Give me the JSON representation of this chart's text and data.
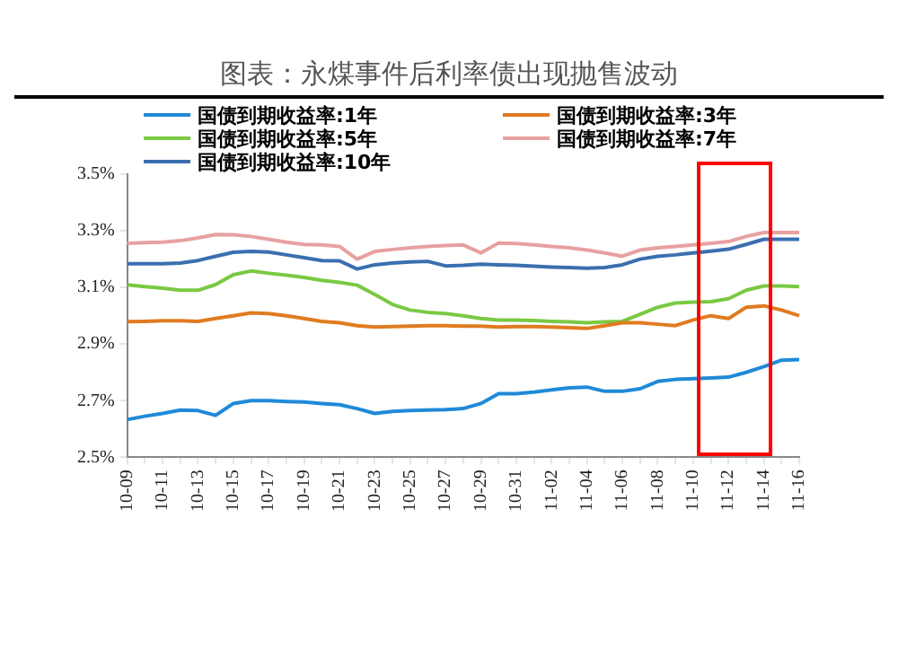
{
  "chart_data": {
    "type": "line",
    "title": "图表：永煤事件后利率债出现抛售波动",
    "categories": [
      "10-09",
      null,
      "10-11",
      null,
      "10-13",
      null,
      "10-15",
      null,
      "10-17",
      null,
      "10-19",
      null,
      "10-21",
      null,
      "10-23",
      null,
      "10-25",
      null,
      "10-27",
      null,
      "10-29",
      null,
      "10-31",
      null,
      "11-02",
      null,
      "11-04",
      null,
      "11-06",
      null,
      "11-08",
      null,
      "11-10",
      null,
      "11-12",
      null,
      "11-14",
      null,
      "11-16"
    ],
    "series": [
      {
        "name": "国债到期收益率:1年",
        "color": "#1f8ad8",
        "values": [
          2.633,
          2.645,
          2.655,
          2.667,
          2.665,
          2.648,
          2.69,
          2.7,
          2.7,
          2.697,
          2.695,
          2.69,
          2.686,
          2.672,
          2.655,
          2.662,
          2.665,
          2.667,
          2.668,
          2.672,
          2.69,
          2.725,
          2.725,
          2.73,
          2.738,
          2.745,
          2.748,
          2.733,
          2.733,
          2.742,
          2.768,
          2.775,
          2.778,
          2.78,
          2.783,
          2.8,
          2.82,
          2.843,
          2.845
        ]
      },
      {
        "name": "国债到期收益率:3年",
        "color": "#e07b20",
        "values": [
          2.979,
          2.98,
          2.982,
          2.982,
          2.98,
          2.99,
          3.0,
          3.01,
          3.008,
          3.0,
          2.99,
          2.98,
          2.975,
          2.965,
          2.96,
          2.962,
          2.963,
          2.965,
          2.965,
          2.963,
          2.963,
          2.96,
          2.962,
          2.962,
          2.96,
          2.958,
          2.955,
          2.965,
          2.975,
          2.975,
          2.97,
          2.965,
          2.985,
          3.0,
          2.99,
          3.03,
          3.035,
          3.02,
          3.0
        ]
      },
      {
        "name": "国债到期收益率:5年",
        "color": "#7ac943",
        "values": [
          3.109,
          3.103,
          3.097,
          3.09,
          3.09,
          3.11,
          3.145,
          3.158,
          3.15,
          3.143,
          3.135,
          3.125,
          3.118,
          3.108,
          3.075,
          3.04,
          3.02,
          3.012,
          3.008,
          3.0,
          2.99,
          2.985,
          2.985,
          2.983,
          2.98,
          2.978,
          2.975,
          2.978,
          2.98,
          3.005,
          3.03,
          3.045,
          3.048,
          3.05,
          3.06,
          3.09,
          3.105,
          3.105,
          3.103
        ]
      },
      {
        "name": "国债到期收益率:7年",
        "color": "#e8a0a0",
        "values": [
          3.256,
          3.258,
          3.26,
          3.265,
          3.275,
          3.287,
          3.286,
          3.28,
          3.27,
          3.26,
          3.252,
          3.25,
          3.245,
          3.2,
          3.227,
          3.234,
          3.24,
          3.245,
          3.248,
          3.25,
          3.222,
          3.257,
          3.255,
          3.25,
          3.245,
          3.24,
          3.232,
          3.222,
          3.21,
          3.232,
          3.24,
          3.245,
          3.25,
          3.256,
          3.262,
          3.28,
          3.294,
          3.294,
          3.294
        ]
      },
      {
        "name": "国债到期收益率:10年",
        "color": "#3a6fb0",
        "values": [
          3.184,
          3.184,
          3.184,
          3.186,
          3.195,
          3.21,
          3.224,
          3.227,
          3.225,
          3.215,
          3.205,
          3.195,
          3.194,
          3.165,
          3.18,
          3.186,
          3.19,
          3.192,
          3.176,
          3.178,
          3.182,
          3.18,
          3.178,
          3.175,
          3.172,
          3.17,
          3.168,
          3.17,
          3.18,
          3.2,
          3.21,
          3.215,
          3.222,
          3.228,
          3.235,
          3.252,
          3.27,
          3.27,
          3.27
        ]
      }
    ],
    "ylim": [
      2.5,
      3.5
    ],
    "yticks": [
      {
        "value": 2.5,
        "label": "2.5%"
      },
      {
        "value": 2.7,
        "label": "2.7%"
      },
      {
        "value": 2.9,
        "label": "2.9%"
      },
      {
        "value": 3.1,
        "label": "3.1%"
      },
      {
        "value": 3.3,
        "label": "3.3%"
      },
      {
        "value": 3.5,
        "label": "3.5%"
      }
    ],
    "legend": "top",
    "grid": false,
    "marker": "none",
    "line_style": "solid"
  }
}
